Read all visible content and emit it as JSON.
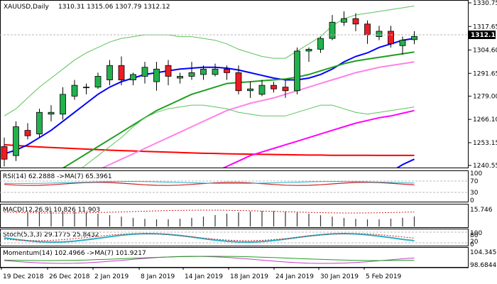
{
  "header": {
    "symbol": "XAUUSD,Daily",
    "ohlc": "1310.31 1315.06 1307.79 1312.12"
  },
  "colors": {
    "bull": "#22b14c",
    "bear": "#ed1c24",
    "ma_red": "#ff0000",
    "ma_blue": "#0000ff",
    "ma_green": "#1f9e1f",
    "ma_magenta": "#ff00ff",
    "ma_pink": "#ff82e6",
    "bb": "#5bc35b",
    "osc_primary": "#2bb0c6",
    "osc_red": "#d02020"
  },
  "price_axis": {
    "ticks": [
      "1330.75",
      "1317.65",
      "1304.60",
      "1291.65",
      "1279.00",
      "1266.10",
      "1253.15",
      "1240.55"
    ],
    "last_price": "1312.12"
  },
  "time_axis": {
    "labels": [
      "19 Dec 2018",
      "26 Dec 2018",
      "2 Jan 2019",
      "8 Jan 2019",
      "14 Jan 2019",
      "18 Jan 2019",
      "24 Jan 2019",
      "30 Jan 2019",
      "5 Feb 2019"
    ]
  },
  "rsi": {
    "label": "RSI(14) 62.2888   ->MA(7) 65.3961",
    "levels": [
      "100",
      "70",
      "30",
      "0"
    ]
  },
  "macd": {
    "label": "MACD(12,26,9) 10.826 11.903",
    "top_value": "15.746"
  },
  "stoch": {
    "label": "Stoch(5,3,3) 29.1775 25.8432",
    "levels": [
      "100",
      "80",
      "20",
      "0"
    ]
  },
  "momentum": {
    "label": "Momentum(14) 102.4966   ->MA(7) 101.9217",
    "top_value": "104.3456",
    "bottom_value": "98.6844"
  },
  "chart_data": {
    "type": "candlestick",
    "title": "XAUUSD,Daily",
    "x_labels": [
      "19 Dec 2018",
      "26 Dec 2018",
      "2 Jan 2019",
      "8 Jan 2019",
      "14 Jan 2019",
      "18 Jan 2019",
      "24 Jan 2019",
      "30 Jan 2019",
      "5 Feb 2019"
    ],
    "ylim": [
      1240.55,
      1330.75
    ],
    "candles": [
      {
        "o": 1251,
        "h": 1256,
        "l": 1240,
        "c": 1244
      },
      {
        "o": 1246,
        "h": 1265,
        "l": 1243,
        "c": 1262
      },
      {
        "o": 1260,
        "h": 1264,
        "l": 1255,
        "c": 1257
      },
      {
        "o": 1258,
        "h": 1272,
        "l": 1256,
        "c": 1270
      },
      {
        "o": 1269,
        "h": 1274,
        "l": 1265,
        "c": 1270
      },
      {
        "o": 1269,
        "h": 1284,
        "l": 1266,
        "c": 1280
      },
      {
        "o": 1279,
        "h": 1288,
        "l": 1277,
        "c": 1285
      },
      {
        "o": 1284,
        "h": 1286,
        "l": 1280,
        "c": 1284
      },
      {
        "o": 1284,
        "h": 1292,
        "l": 1283,
        "c": 1290
      },
      {
        "o": 1288,
        "h": 1299,
        "l": 1285,
        "c": 1296
      },
      {
        "o": 1296,
        "h": 1301,
        "l": 1285,
        "c": 1288
      },
      {
        "o": 1288,
        "h": 1292,
        "l": 1285,
        "c": 1291
      },
      {
        "o": 1290,
        "h": 1298,
        "l": 1286,
        "c": 1295
      },
      {
        "o": 1287,
        "h": 1298,
        "l": 1282,
        "c": 1294
      },
      {
        "o": 1296,
        "h": 1299,
        "l": 1285,
        "c": 1290
      },
      {
        "o": 1289,
        "h": 1292,
        "l": 1286,
        "c": 1290
      },
      {
        "o": 1290,
        "h": 1298,
        "l": 1288,
        "c": 1292
      },
      {
        "o": 1291,
        "h": 1296,
        "l": 1288,
        "c": 1294
      },
      {
        "o": 1291,
        "h": 1297,
        "l": 1290,
        "c": 1294
      },
      {
        "o": 1294,
        "h": 1296,
        "l": 1288,
        "c": 1292
      },
      {
        "o": 1292,
        "h": 1296,
        "l": 1280,
        "c": 1282
      },
      {
        "o": 1282,
        "h": 1287,
        "l": 1278,
        "c": 1283
      },
      {
        "o": 1280,
        "h": 1288,
        "l": 1279,
        "c": 1285
      },
      {
        "o": 1285,
        "h": 1287,
        "l": 1281,
        "c": 1283
      },
      {
        "o": 1284,
        "h": 1288,
        "l": 1278,
        "c": 1282
      },
      {
        "o": 1282,
        "h": 1306,
        "l": 1280,
        "c": 1304
      },
      {
        "o": 1304,
        "h": 1306,
        "l": 1298,
        "c": 1305
      },
      {
        "o": 1305,
        "h": 1312,
        "l": 1303,
        "c": 1311
      },
      {
        "o": 1311,
        "h": 1324,
        "l": 1310,
        "c": 1320
      },
      {
        "o": 1320,
        "h": 1326,
        "l": 1318,
        "c": 1322
      },
      {
        "o": 1322,
        "h": 1325,
        "l": 1315,
        "c": 1319
      },
      {
        "o": 1319,
        "h": 1321,
        "l": 1308,
        "c": 1313
      },
      {
        "o": 1312,
        "h": 1318,
        "l": 1310,
        "c": 1315
      },
      {
        "o": 1315,
        "h": 1318,
        "l": 1306,
        "c": 1308
      },
      {
        "o": 1307,
        "h": 1312,
        "l": 1302,
        "c": 1310
      },
      {
        "o": 1310.31,
        "h": 1315.06,
        "l": 1307.79,
        "c": 1312.12
      }
    ],
    "overlays": [
      {
        "color": "#ff0000",
        "values": [
          1252,
          1251.6,
          1251.2,
          1250.8,
          1250.5,
          1250.2,
          1249.9,
          1249.6,
          1249.3,
          1249.0,
          1248.8,
          1248.6,
          1248.3,
          1248.1,
          1247.9,
          1247.7,
          1247.5,
          1247.3,
          1247.2,
          1247.0,
          1246.9,
          1246.8,
          1246.7,
          1246.6,
          1246.5,
          1246.4,
          1246.3,
          1246.3,
          1246.2,
          1246.2,
          1246.2,
          1246.2,
          1246.1,
          1246.1,
          1246.1,
          1246.1
        ]
      },
      {
        "color": "#0000ff",
        "values": [
          1247,
          1249,
          1252,
          1256,
          1260,
          1265,
          1270,
          1275,
          1280,
          1284,
          1287,
          1289,
          1291,
          1292,
          1293,
          1294,
          1294.5,
          1295,
          1295,
          1294.5,
          1293.5,
          1292,
          1290.5,
          1289,
          1288,
          1288,
          1289,
          1291,
          1294,
          1298,
          1301,
          1303,
          1306,
          1308,
          1310,
          1311
        ]
      },
      {
        "color": "#1f9e1f",
        "values": [
          1223,
          1226,
          1229,
          1232,
          1235,
          1239,
          1243,
          1247,
          1251,
          1255,
          1259,
          1263,
          1267,
          1271,
          1274,
          1277,
          1280,
          1282,
          1284,
          1286,
          1286.5,
          1287,
          1287.5,
          1288,
          1288.5,
          1289.5,
          1291,
          1293,
          1295,
          1297,
          1298.5,
          1299.5,
          1300.5,
          1301.5,
          1302.5,
          1303.5
        ]
      },
      {
        "color": "#ff82e6",
        "values": [
          1216,
          1218,
          1220,
          1223,
          1226,
          1229,
          1232,
          1235,
          1238,
          1241,
          1244,
          1247,
          1250,
          1253,
          1256,
          1259,
          1262,
          1265,
          1268,
          1271,
          1273,
          1275,
          1276.5,
          1278,
          1280,
          1282,
          1284,
          1286,
          1288,
          1290,
          1292,
          1293.5,
          1295,
          1296,
          1297,
          1298
        ]
      },
      {
        "color": "#ff00ff",
        "values": [
          1200,
          1202,
          1204,
          1206,
          1208,
          1210,
          1212,
          1214,
          1216,
          1218,
          1220,
          1222,
          1224,
          1226,
          1228,
          1230,
          1232,
          1234,
          1237,
          1240,
          1243,
          1246,
          1248,
          1250,
          1252,
          1254,
          1256,
          1258,
          1260,
          1262,
          1264,
          1265.5,
          1267,
          1268,
          1269.5,
          1271
        ]
      },
      {
        "color": "#0000ff",
        "values": [
          1190,
          1191,
          1192,
          1193,
          1194,
          1195,
          1196,
          1197,
          1198,
          1199,
          1200,
          1201,
          1202,
          1203,
          1204,
          1205,
          1206,
          1207,
          1208,
          1209,
          1210,
          1211,
          1212,
          1213,
          1214,
          1215,
          1216,
          1217,
          1219,
          1222,
          1225,
          1229,
          1233,
          1237,
          1241,
          1244
        ]
      },
      {
        "color": "#5bc35b",
        "values": [
          1268,
          1272,
          1278,
          1284,
          1289,
          1294,
          1299,
          1303,
          1306,
          1309,
          1311,
          1312,
          1313,
          1313,
          1313,
          1312,
          1312,
          1311,
          1310,
          1308,
          1305,
          1303,
          1301,
          1300,
          1300,
          1304,
          1308,
          1312,
          1318,
          1322,
          1324,
          1325,
          1326,
          1327,
          1328,
          1329
        ]
      },
      {
        "color": "#5bc35b",
        "values": [
          1215,
          1217,
          1220,
          1223,
          1227,
          1231,
          1236,
          1241,
          1246,
          1251,
          1256,
          1262,
          1267,
          1270,
          1272,
          1273,
          1274,
          1274,
          1273,
          1272,
          1270,
          1269,
          1268,
          1268,
          1268,
          1270,
          1272,
          1274,
          1274,
          1272,
          1270,
          1269,
          1270,
          1271,
          1272,
          1273
        ]
      }
    ]
  }
}
